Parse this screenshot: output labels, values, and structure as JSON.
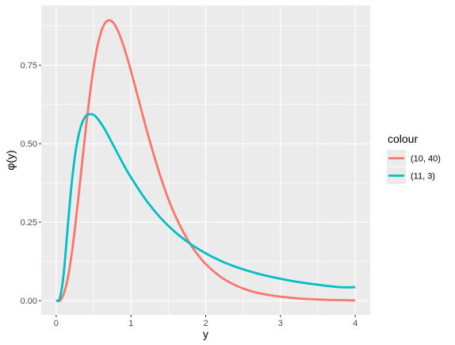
{
  "chart_data": {
    "type": "line",
    "xlabel": "y",
    "ylabel": "φ(y)",
    "xlim": [
      -0.2,
      4.2
    ],
    "ylim": [
      -0.045,
      0.94
    ],
    "x_ticks": [
      0,
      1,
      2,
      3,
      4
    ],
    "x_tick_labels": [
      "0",
      "1",
      "2",
      "3",
      "4"
    ],
    "y_ticks": [
      0.0,
      0.25,
      0.5,
      0.75
    ],
    "y_tick_labels": [
      "0.00",
      "0.25",
      "0.50",
      "0.75"
    ],
    "x_minor": [
      0.5,
      1.5,
      2.5,
      3.5
    ],
    "y_minor": [
      0.125,
      0.375,
      0.625,
      0.875
    ],
    "grid": true,
    "legend": {
      "title": "colour",
      "position": "right"
    },
    "colors": {
      "panel": "#ebebeb",
      "grid": "#ffffff"
    },
    "series": [
      {
        "name": "(10, 40)",
        "color": "#F8766D",
        "x": [
          0.0,
          0.05,
          0.1,
          0.15,
          0.2,
          0.25,
          0.3,
          0.35,
          0.4,
          0.45,
          0.5,
          0.55,
          0.6,
          0.65,
          0.7,
          0.75,
          0.8,
          0.85,
          0.9,
          0.95,
          1.0,
          1.1,
          1.2,
          1.3,
          1.4,
          1.5,
          1.6,
          1.7,
          1.8,
          1.9,
          2.0,
          2.2,
          2.4,
          2.6,
          2.8,
          3.0,
          3.2,
          3.4,
          3.6,
          3.8,
          4.0
        ],
        "y": [
          0.0,
          0.0,
          0.021,
          0.065,
          0.136,
          0.228,
          0.334,
          0.446,
          0.556,
          0.656,
          0.741,
          0.808,
          0.855,
          0.883,
          0.893,
          0.889,
          0.872,
          0.846,
          0.812,
          0.774,
          0.732,
          0.643,
          0.553,
          0.469,
          0.392,
          0.324,
          0.267,
          0.219,
          0.178,
          0.145,
          0.117,
          0.076,
          0.049,
          0.031,
          0.02,
          0.013,
          0.008,
          0.005,
          0.003,
          0.002,
          0.001
        ]
      },
      {
        "name": "(11, 3)",
        "color": "#00BFC4",
        "x": [
          0.0,
          0.05,
          0.1,
          0.15,
          0.2,
          0.25,
          0.3,
          0.35,
          0.4,
          0.45,
          0.5,
          0.55,
          0.6,
          0.65,
          0.7,
          0.8,
          0.9,
          1.0,
          1.2,
          1.4,
          1.6,
          1.8,
          2.0,
          2.2,
          2.4,
          2.6,
          2.8,
          3.0,
          3.2,
          3.4,
          3.6,
          3.8,
          4.0
        ],
        "y": [
          0.0,
          0.009,
          0.085,
          0.222,
          0.355,
          0.459,
          0.527,
          0.568,
          0.589,
          0.594,
          0.592,
          0.581,
          0.565,
          0.546,
          0.524,
          0.479,
          0.434,
          0.393,
          0.321,
          0.263,
          0.217,
          0.18,
          0.151,
          0.127,
          0.108,
          0.093,
          0.08,
          0.07,
          0.061,
          0.054,
          0.048,
          0.043,
          0.043
        ]
      }
    ]
  }
}
